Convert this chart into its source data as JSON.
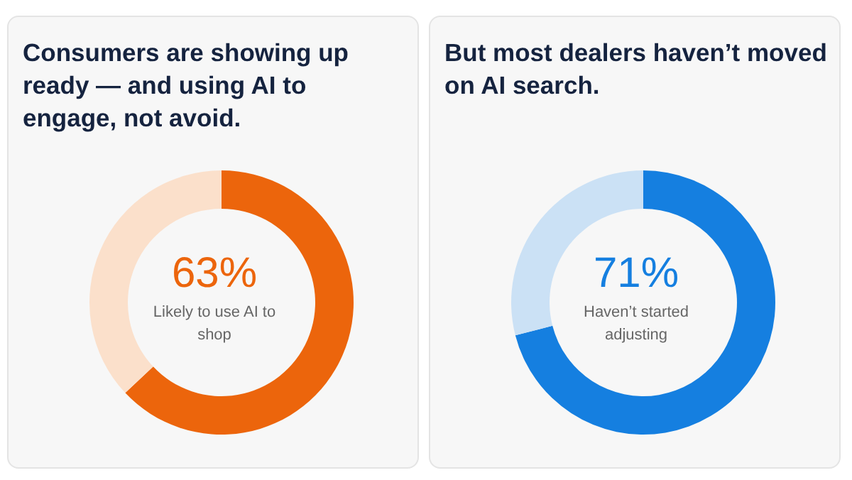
{
  "chart_data": [
    {
      "type": "donut",
      "title": "Consumers are showing up ready — and using AI to engage, not avoid.",
      "categories": [
        "Likely to use AI to shop",
        null
      ],
      "values": [
        63,
        37
      ],
      "colors": [
        "#ec650c",
        "#fbe0cb"
      ],
      "value_labels": [
        "63%",
        null
      ]
    },
    {
      "type": "donut",
      "title": "But most dealers haven’t moved on AI search.",
      "categories": [
        "Haven’t started adjusting",
        null
      ],
      "values": [
        71,
        29
      ],
      "colors": [
        "#157fe0",
        "#cbe1f5"
      ],
      "value_labels": [
        "71%",
        null
      ]
    }
  ]
}
